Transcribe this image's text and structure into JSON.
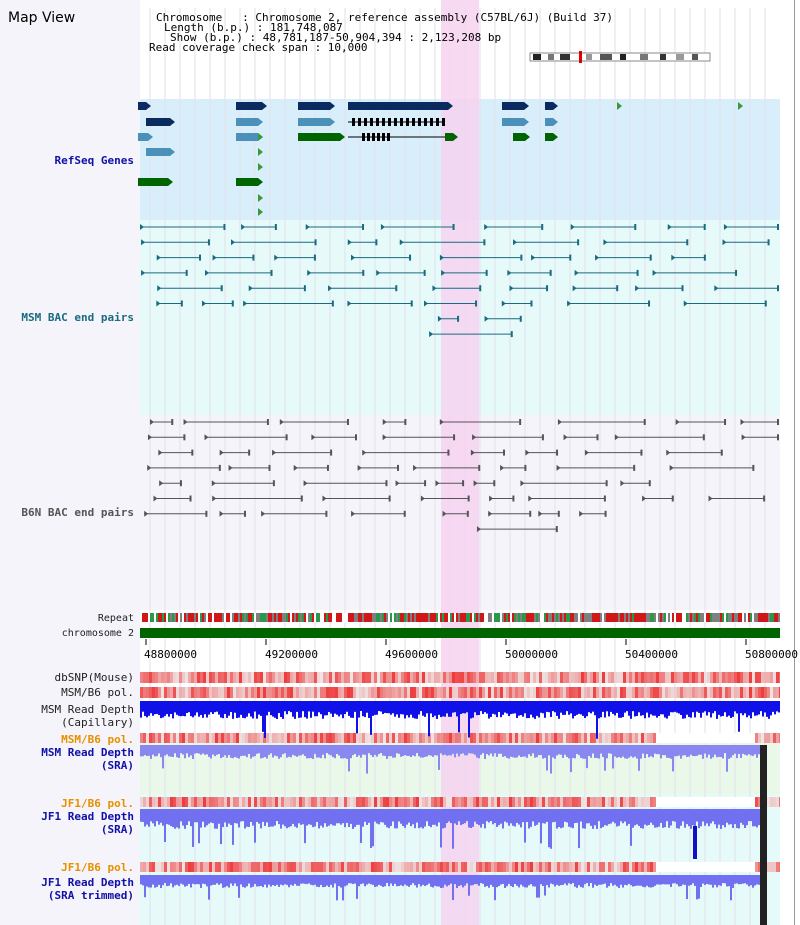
{
  "title": "Map View",
  "info": {
    "chromosome": "Chromosome   : Chromosome 2, reference assembly (C57BL/6J) (Build 37)",
    "length": "Length (b.p.) : 181,748,087",
    "show": "Show (b.p.) : 48,781,187-50,904,394 : 2,123,208 bp",
    "span": "Read coverage check span : 10,000"
  },
  "tracks": {
    "refseq": "RefSeq Genes",
    "msm_bac": "MSM BAC end pairs",
    "b6n_bac": "B6N BAC end pairs",
    "repeat": "Repeat",
    "chromosome": "chromosome 2",
    "dbsnp": "dbSNP(Mouse)",
    "msm_pol1": "MSM/B6 pol.",
    "msm_cap1": "MSM Read Depth",
    "msm_cap2": "(Capillary)",
    "msm_pol2": "MSM/B6 pol.",
    "msm_sra1": "MSM Read Depth",
    "msm_sra2": "(SRA)",
    "jf1_pol1": "JF1/B6 pol.",
    "jf1_sra1": "JF1 Read Depth",
    "jf1_sra2": "(SRA)",
    "jf1_pol2": "JF1/B6 pol.",
    "jf1_trim1": "JF1 Read Depth",
    "jf1_trim2": "(SRA trimmed)"
  },
  "axis": {
    "ticks": [
      "48800000",
      "49200000",
      "49600000",
      "50000000",
      "50400000",
      "50800000"
    ]
  },
  "colors": {
    "refseq_bg": "#d8eefa",
    "bac_bg": "#e6fafa",
    "b6n_bg": "#f4f4fa",
    "highlight": "#f6d2f0",
    "msm_bac": "#1a6a80",
    "b6n_bac": "#555555",
    "chromosome": "#006400",
    "pol_red": "#ee2020",
    "depth_blue": "#1010e0"
  }
}
